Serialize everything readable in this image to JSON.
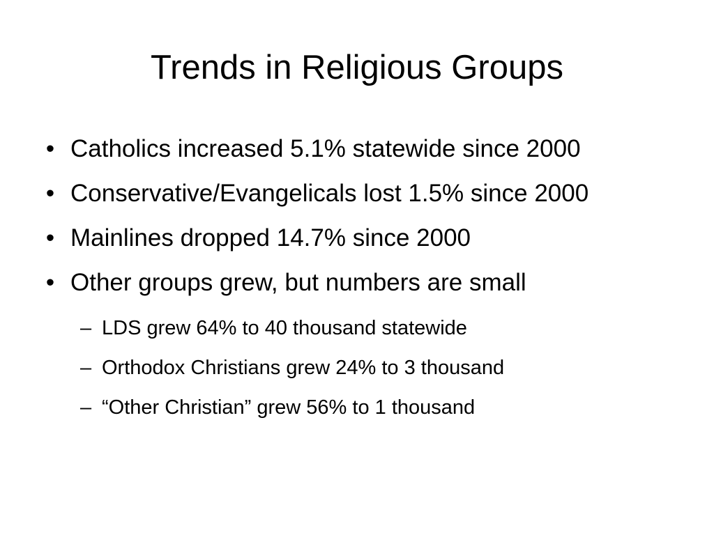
{
  "slide": {
    "title": "Trends in Religious Groups",
    "bullets": [
      {
        "marker": "•",
        "text": "Catholics increased 5.1% statewide since 2000"
      },
      {
        "marker": "•",
        "text": "Conservative/Evangelicals lost 1.5% since 2000"
      },
      {
        "marker": "•",
        "text": "Mainlines dropped 14.7% since 2000"
      },
      {
        "marker": "•",
        "text": "Other groups grew, but numbers are small"
      }
    ],
    "sub_bullets": [
      {
        "marker": "–",
        "text": "LDS grew 64% to 40 thousand statewide"
      },
      {
        "marker": "–",
        "text": "Orthodox Christians grew 24% to 3 thousand"
      },
      {
        "marker": "–",
        "text": "“Other Christian” grew 56% to 1 thousand"
      }
    ]
  }
}
